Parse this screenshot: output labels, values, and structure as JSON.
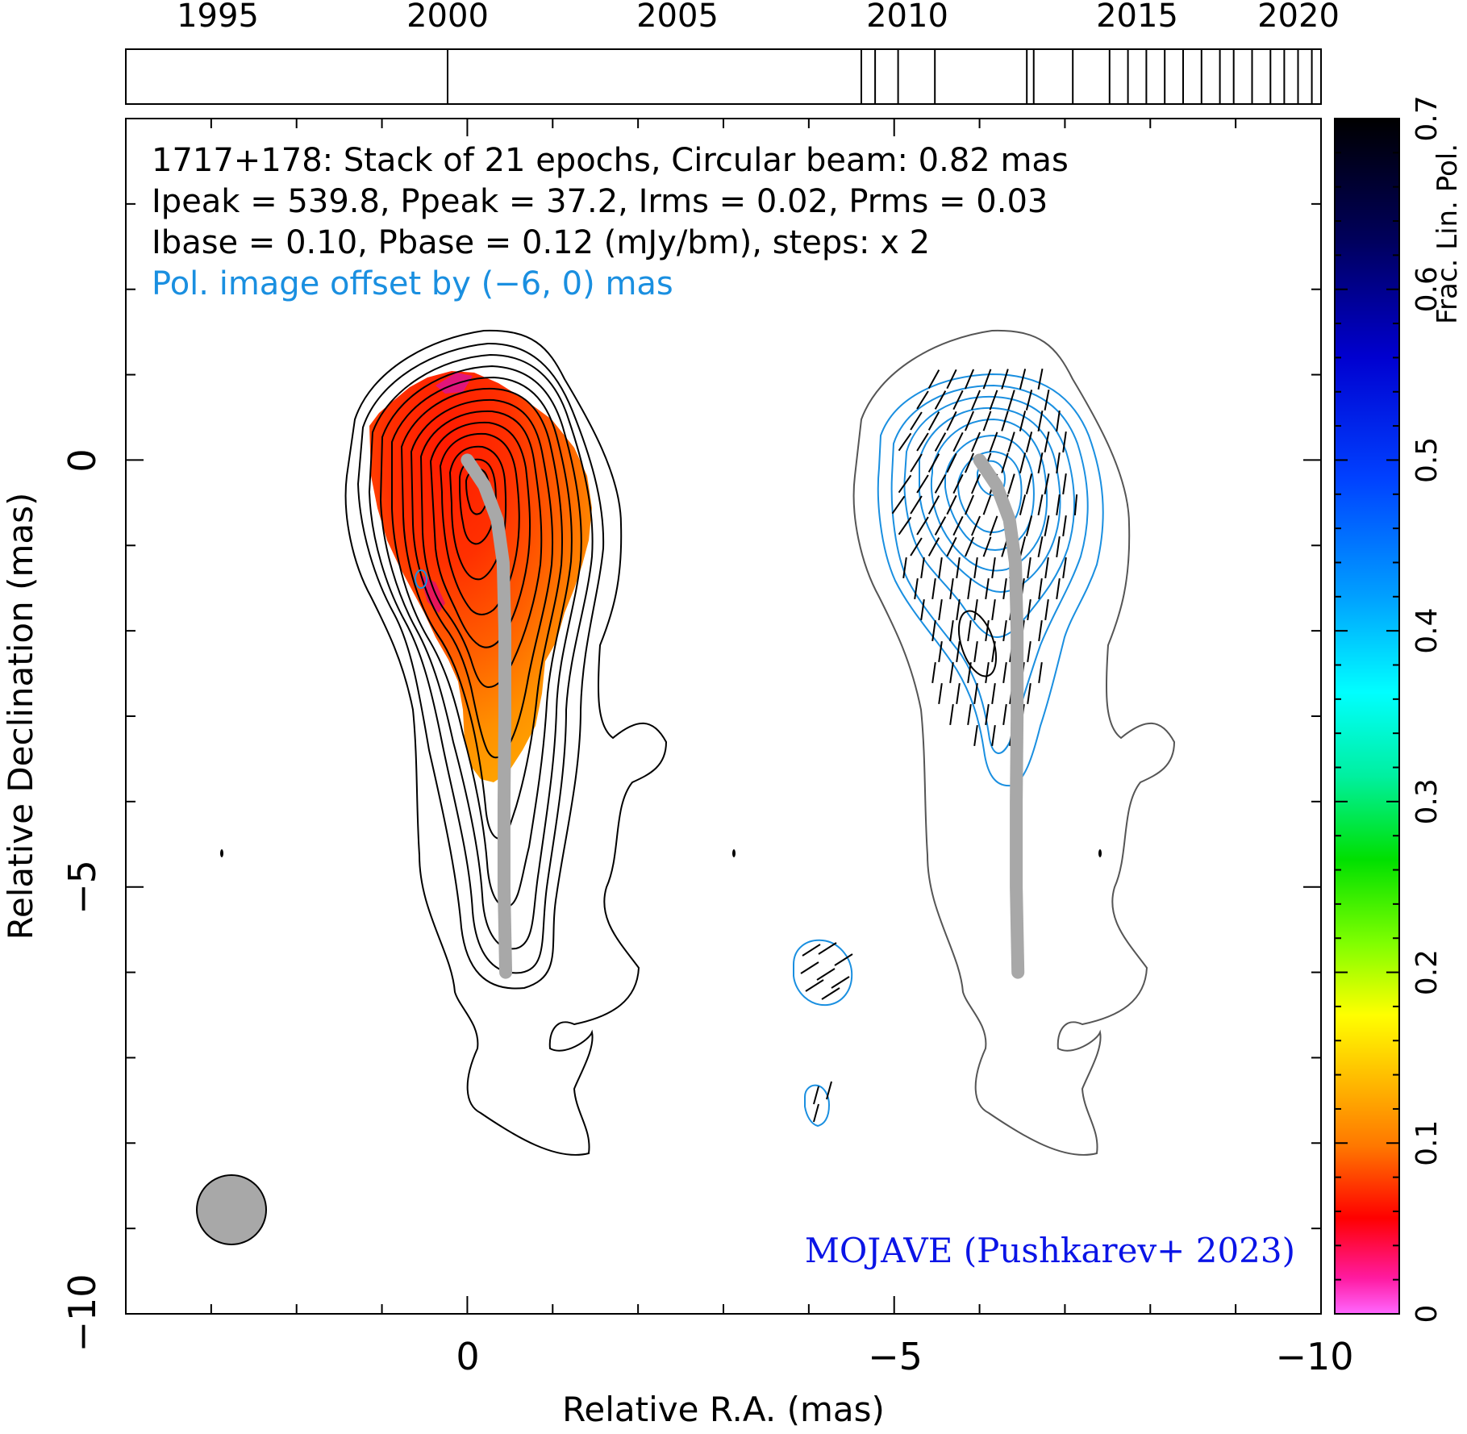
{
  "chart_data": {
    "type": "contour-map",
    "source": "1717+178",
    "header_lines": [
      "1717+178: Stack of 21 epochs, Circular beam: 0.82 mas",
      "Ipeak = 539.8, Ppeak = 37.2, Irms = 0.02, Prms = 0.03",
      "Ibase = 0.10, Pbase = 0.12 (mJy/bm), steps: x 2"
    ],
    "pol_offset_note": "Pol. image offset by (−6, 0) mas",
    "credit": "MOJAVE (Pushkarev+ 2023)",
    "xlabel": "Relative R.A. (mas)",
    "ylabel": "Relative Declination (mas)",
    "xlim": [
      4,
      -10
    ],
    "ylim": [
      -10,
      4
    ],
    "x_ticks": [
      0,
      -5,
      -10
    ],
    "x_tick_labels": [
      "0",
      "−5",
      "−10"
    ],
    "y_ticks": [
      0,
      -5,
      -10
    ],
    "y_tick_labels": [
      "0",
      "−5",
      "−10"
    ],
    "colorbar": {
      "label": "Frac. Lin. Pol.",
      "range": [
        0,
        0.7
      ],
      "ticks": [
        0,
        0.1,
        0.2,
        0.3,
        0.4,
        0.5,
        0.6,
        0.7
      ],
      "tick_labels": [
        "0",
        "0.1",
        "0.2",
        "0.3",
        "0.4",
        "0.5",
        "0.6",
        "0.7"
      ]
    },
    "timeline": {
      "range": [
        1993,
        2019
      ],
      "year_labels": [
        1995,
        2000,
        2005,
        2010,
        2015,
        2020
      ],
      "epochs": [
        2000.0,
        2009.0,
        2009.3,
        2009.8,
        2010.6,
        2012.6,
        2012.75,
        2013.6,
        2014.4,
        2014.8,
        2015.2,
        2015.6,
        2016.0,
        2016.4,
        2016.8,
        2017.1,
        2017.5,
        2017.9,
        2018.2,
        2018.5,
        2018.8
      ]
    },
    "beam_fwhm_mas": 0.82,
    "ridge_line": [
      [
        0.0,
        0.0
      ],
      [
        -0.2,
        -0.3
      ],
      [
        -0.35,
        -0.7
      ],
      [
        -0.42,
        -1.2
      ],
      [
        -0.44,
        -2.0
      ],
      [
        -0.44,
        -3.0
      ],
      [
        -0.43,
        -4.0
      ],
      [
        -0.43,
        -5.0
      ],
      [
        -0.45,
        -6.0
      ]
    ]
  },
  "colors": {
    "stokes_i_contour": "#000000",
    "pol_contour": "#1a8fe0",
    "ridge": "#a8a8a8",
    "credit": "#0a14e6",
    "offset_note": "#1a8fe0",
    "outer_contour_right": "#555555"
  }
}
